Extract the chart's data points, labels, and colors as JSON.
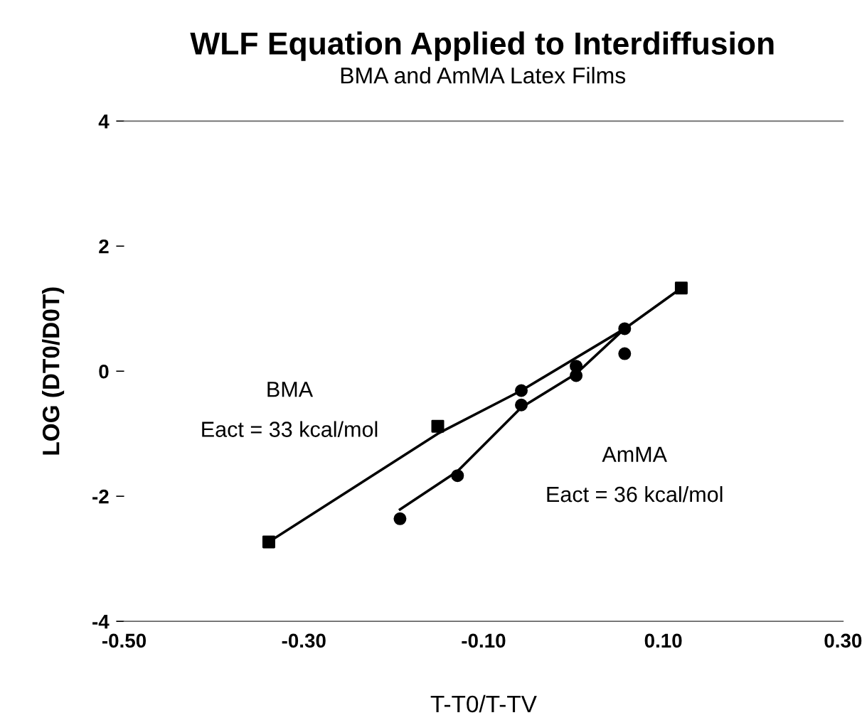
{
  "chart_data": {
    "type": "scatter",
    "title": "WLF Equation Applied to Interdiffusion",
    "subtitle": "BMA and AmMA Latex Films",
    "xlabel": "T-T0/T-TV",
    "ylabel": "LOG (DT0/D0T)",
    "series": [
      {
        "type": "line",
        "color": "#000000",
        "x": [
          -0.339,
          -0.151,
          -0.058,
          0.057,
          0.12
        ],
        "values": [
          -2.73,
          -1.0,
          -0.31,
          0.68,
          1.33
        ]
      },
      {
        "type": "line",
        "color": "#000000",
        "x": [
          -0.193,
          -0.129,
          -0.058,
          0.003,
          0.057
        ],
        "values": [
          -2.21,
          -1.6,
          -0.58,
          -0.04,
          0.68
        ]
      },
      {
        "marker": "square",
        "color": "#000000",
        "x": [
          -0.339,
          -0.151,
          0.12
        ],
        "values": [
          -2.73,
          -0.88,
          1.33
        ]
      },
      {
        "marker": "circle",
        "color": "#000000",
        "x": [
          -0.193,
          -0.129,
          -0.058,
          -0.058,
          0.003,
          0.003,
          0.057,
          0.057
        ],
        "values": [
          -2.36,
          -1.67,
          -0.31,
          -0.54,
          0.08,
          -0.07,
          0.68,
          0.28
        ]
      }
    ],
    "annotations": [
      "BMA",
      "Eact = 33 kcal/mol",
      "AmMA",
      "Eact = 36 kcal/mol"
    ],
    "xlim": [
      -0.5,
      0.3
    ],
    "xticks": [
      {
        "value": -0.5,
        "label": "-0.50"
      },
      {
        "value": -0.3,
        "label": "-0.30"
      },
      {
        "value": -0.1,
        "label": "-0.10"
      },
      {
        "value": 0.1,
        "label": "0.10"
      },
      {
        "value": 0.3,
        "label": "0.30"
      }
    ],
    "ylim": [
      -4,
      4
    ],
    "yticks": [
      4,
      2,
      0,
      {
        "value": -2,
        "label": "-2"
      },
      {
        "value": -4,
        "label": "-4"
      }
    ],
    "grid": false,
    "legend": false
  }
}
